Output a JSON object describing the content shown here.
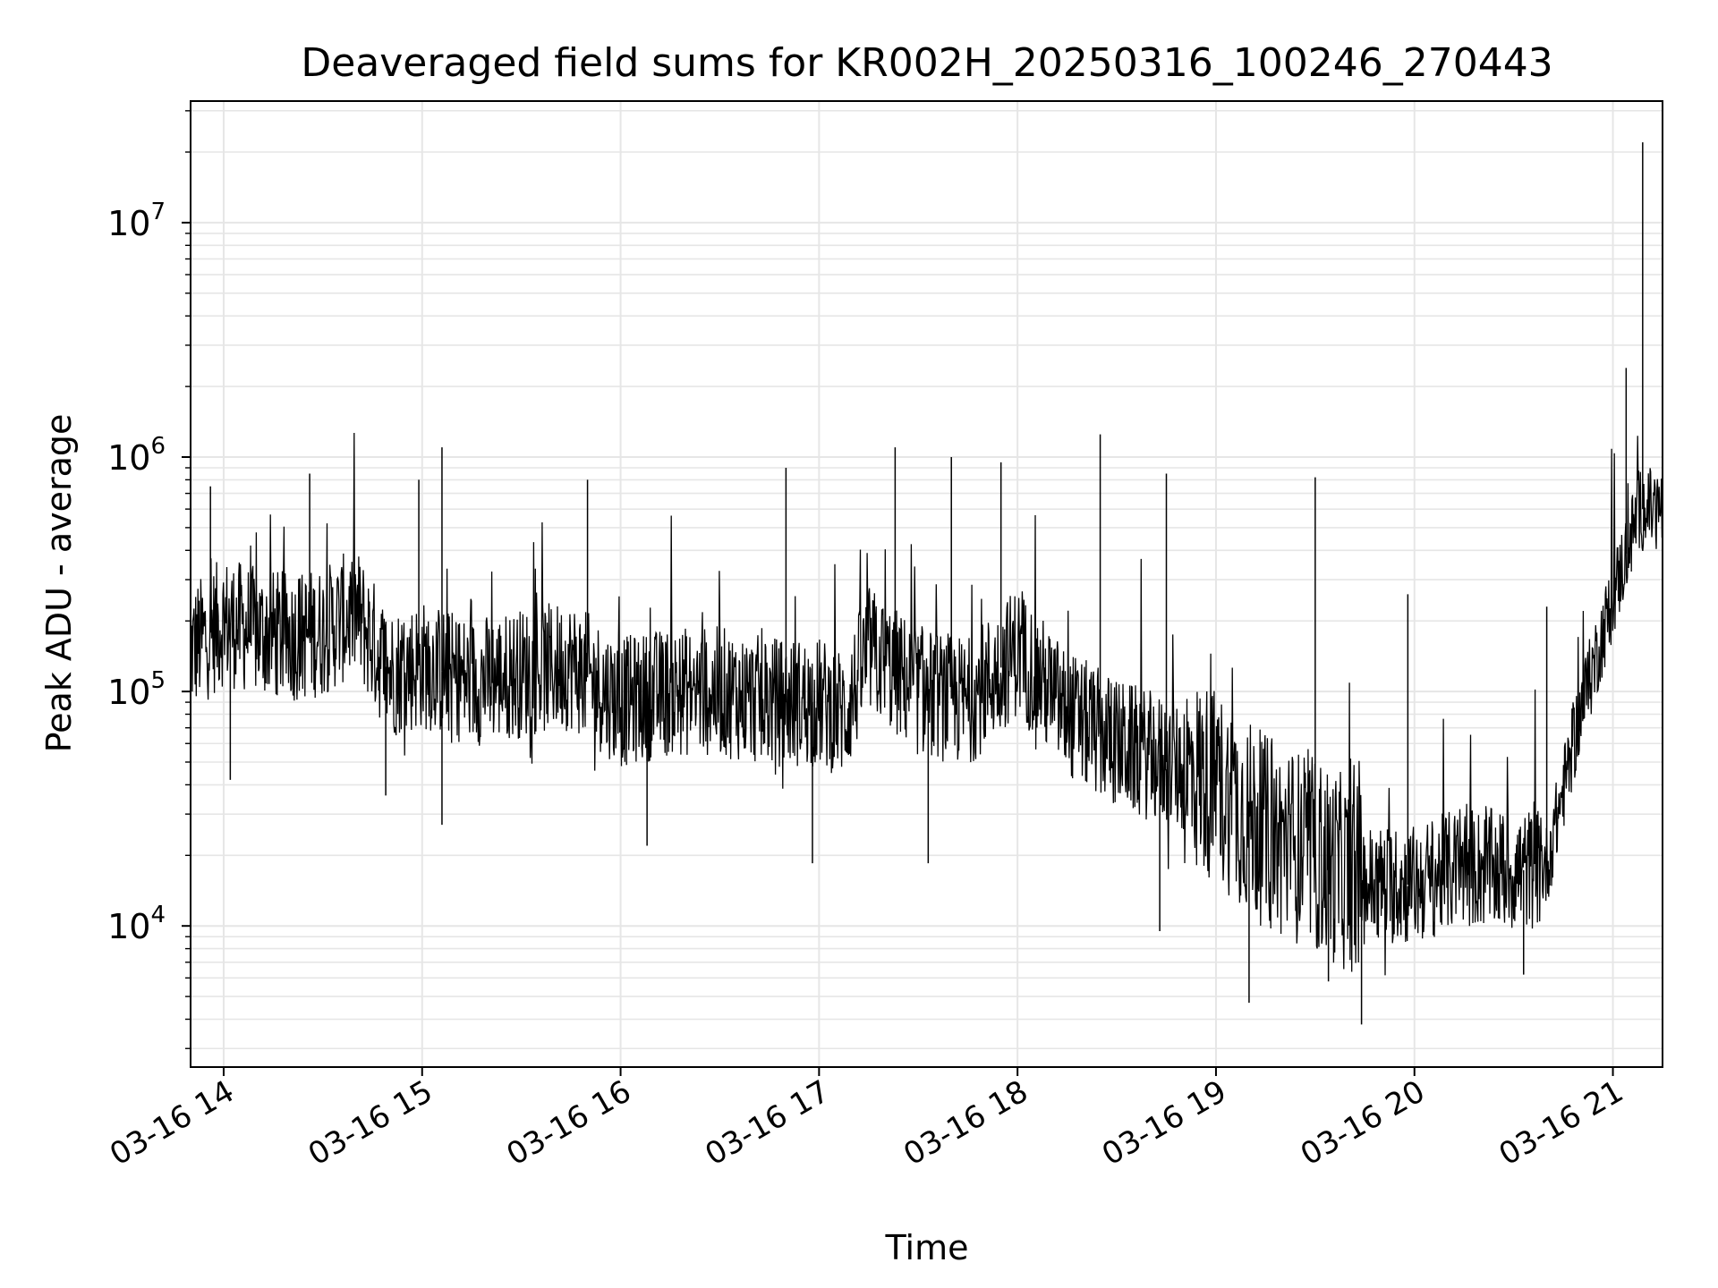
{
  "chart_data": {
    "type": "line",
    "title": "Deaveraged field sums for KR002H_20250316_100246_270443",
    "xlabel": "Time",
    "ylabel": "Peak ADU - average",
    "yscale": "log",
    "ylim": [
      2500,
      33000000
    ],
    "xlim": [
      "2025-03-16 13:50",
      "2025-03-16 21:15"
    ],
    "grid": true,
    "x_ticks": [
      {
        "value": "2025-03-16 14:00",
        "label": "03-16 14"
      },
      {
        "value": "2025-03-16 15:00",
        "label": "03-16 15"
      },
      {
        "value": "2025-03-16 16:00",
        "label": "03-16 16"
      },
      {
        "value": "2025-03-16 17:00",
        "label": "03-16 17"
      },
      {
        "value": "2025-03-16 18:00",
        "label": "03-16 18"
      },
      {
        "value": "2025-03-16 19:00",
        "label": "03-16 19"
      },
      {
        "value": "2025-03-16 20:00",
        "label": "03-16 20"
      },
      {
        "value": "2025-03-16 21:00",
        "label": "03-16 21"
      }
    ],
    "y_ticks": [
      {
        "value": 10000,
        "base": "10",
        "exp": "4"
      },
      {
        "value": 100000,
        "base": "10",
        "exp": "5"
      },
      {
        "value": 1000000,
        "base": "10",
        "exp": "6"
      },
      {
        "value": 10000000,
        "base": "10",
        "exp": "7"
      }
    ],
    "series_color": "#000000",
    "grid_color": "#e6e6e6",
    "series": [
      {
        "x": [
          "2025-03-16 13:50",
          "2025-03-16 14:00",
          "2025-03-16 14:10",
          "2025-03-16 14:20",
          "2025-03-16 14:30",
          "2025-03-16 14:40",
          "2025-03-16 14:50",
          "2025-03-16 15:00",
          "2025-03-16 15:15",
          "2025-03-16 15:30",
          "2025-03-16 15:45",
          "2025-03-16 16:00",
          "2025-03-16 16:15",
          "2025-03-16 16:30",
          "2025-03-16 16:45",
          "2025-03-16 17:00",
          "2025-03-16 17:08",
          "2025-03-16 17:15",
          "2025-03-16 17:30",
          "2025-03-16 17:45",
          "2025-03-16 18:00",
          "2025-03-16 18:15",
          "2025-03-16 18:30",
          "2025-03-16 18:45",
          "2025-03-16 19:00",
          "2025-03-16 19:15",
          "2025-03-16 19:30",
          "2025-03-16 19:45",
          "2025-03-16 20:00",
          "2025-03-16 20:15",
          "2025-03-16 20:30",
          "2025-03-16 20:40",
          "2025-03-16 20:50",
          "2025-03-16 21:00",
          "2025-03-16 21:08",
          "2025-03-16 21:15"
        ],
        "y": [
          150000,
          200000,
          180000,
          170000,
          180000,
          220000,
          120000,
          130000,
          110000,
          120000,
          130000,
          90000,
          100000,
          100000,
          90000,
          90000,
          80000,
          150000,
          100000,
          90000,
          150000,
          80000,
          60000,
          50000,
          40000,
          25000,
          20000,
          15000,
          15000,
          18000,
          17000,
          18000,
          80000,
          250000,
          600000,
          600000
        ]
      }
    ],
    "spikes": [
      {
        "x": "2025-03-16 13:56",
        "y": 750000
      },
      {
        "x": "2025-03-16 14:26",
        "y": 850000
      },
      {
        "x": "2025-03-16 14:59",
        "y": 800000
      },
      {
        "x": "2025-03-16 15:06",
        "y": 1100000
      },
      {
        "x": "2025-03-16 15:50",
        "y": 800000
      },
      {
        "x": "2025-03-16 16:50",
        "y": 900000
      },
      {
        "x": "2025-03-16 17:23",
        "y": 1100000
      },
      {
        "x": "2025-03-16 17:40",
        "y": 1000000
      },
      {
        "x": "2025-03-16 17:55",
        "y": 950000
      },
      {
        "x": "2025-03-16 18:25",
        "y": 1250000
      },
      {
        "x": "2025-03-16 18:45",
        "y": 850000
      },
      {
        "x": "2025-03-16 19:30",
        "y": 820000
      },
      {
        "x": "2025-03-16 19:58",
        "y": 260000
      },
      {
        "x": "2025-03-16 20:40",
        "y": 230000
      },
      {
        "x": "2025-03-16 21:04",
        "y": 2400000
      },
      {
        "x": "2025-03-16 21:09",
        "y": 22000000
      }
    ],
    "dips": [
      {
        "x": "2025-03-16 14:02",
        "y": 42000
      },
      {
        "x": "2025-03-16 14:49",
        "y": 36000
      },
      {
        "x": "2025-03-16 15:06",
        "y": 27000
      },
      {
        "x": "2025-03-16 16:08",
        "y": 22000
      },
      {
        "x": "2025-03-16 16:58",
        "y": 18500
      },
      {
        "x": "2025-03-16 17:33",
        "y": 18500
      },
      {
        "x": "2025-03-16 18:43",
        "y": 9500
      },
      {
        "x": "2025-03-16 19:10",
        "y": 4700
      },
      {
        "x": "2025-03-16 19:34",
        "y": 5800
      },
      {
        "x": "2025-03-16 19:44",
        "y": 3800
      },
      {
        "x": "2025-03-16 20:33",
        "y": 6200
      }
    ]
  }
}
